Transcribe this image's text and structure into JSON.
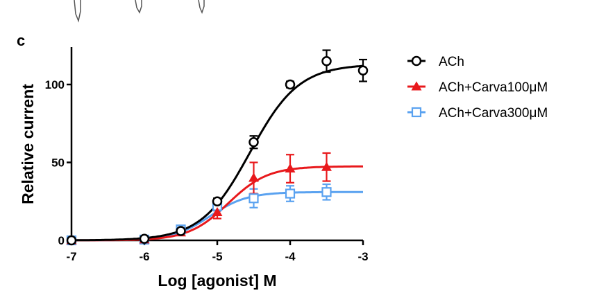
{
  "panel_label": "c",
  "chart_data": {
    "type": "line",
    "xlabel": "Log [agonist] M",
    "ylabel": "Relative current",
    "xlim": [
      -7,
      -3
    ],
    "ylim": [
      0,
      120
    ],
    "x_ticks": [
      -7,
      -6,
      -5,
      -4,
      -3
    ],
    "x_tick_labels": [
      "-7",
      "-6",
      "-5",
      "-4",
      "-3"
    ],
    "y_ticks": [
      0,
      50,
      100
    ],
    "y_tick_labels": [
      "0",
      "50",
      "100"
    ],
    "legend_position": "right",
    "series": [
      {
        "name": "ACh",
        "color": "#000000",
        "marker": "open-circle",
        "x": [
          -7,
          -6,
          -5.5,
          -5,
          -4.5,
          -4,
          -3.5,
          -3
        ],
        "y": [
          0,
          1,
          6,
          25,
          63,
          100,
          115,
          109
        ],
        "err": [
          0,
          1,
          1,
          2,
          4,
          2,
          7,
          7
        ],
        "fit": {
          "bottom": 0,
          "top": 113,
          "logEC50": -4.55,
          "hill": 1.3
        }
      },
      {
        "name": "ACh+Carva100μM",
        "color": "#e8191c",
        "marker": "filled-triangle",
        "x": [
          -7,
          -6,
          -5.5,
          -5,
          -4.5,
          -4,
          -3.5
        ],
        "y": [
          0,
          0.5,
          5,
          18,
          40,
          46,
          47
        ],
        "err": [
          0,
          1,
          1,
          4,
          10,
          9,
          9
        ],
        "fit": {
          "bottom": 0,
          "top": 47.5,
          "logEC50": -4.85,
          "hill": 1.6
        }
      },
      {
        "name": "ACh+Carva300μM",
        "color": "#5aa2f0",
        "marker": "open-square",
        "x": [
          -7,
          -6,
          -5.5,
          -5,
          -4.5,
          -4,
          -3.5
        ],
        "y": [
          0,
          0.5,
          7,
          22,
          27,
          30,
          31
        ],
        "err": [
          0,
          1,
          2,
          3,
          6,
          5,
          5
        ],
        "fit": {
          "bottom": 0,
          "top": 31,
          "logEC50": -5.1,
          "hill": 1.7
        }
      }
    ]
  }
}
